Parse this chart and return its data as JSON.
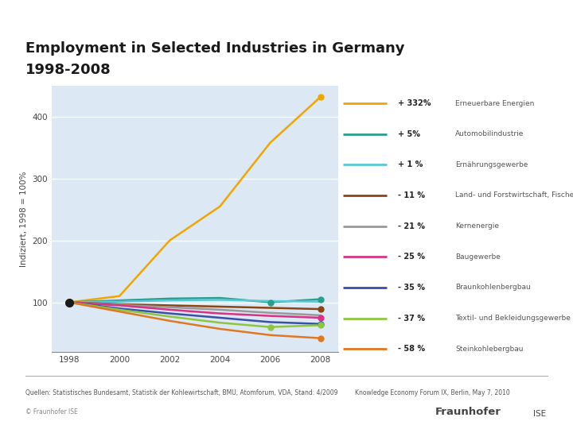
{
  "title_line1": "Employment in Selected Industries in Germany",
  "title_line2": "1998-2008",
  "ylabel": "Indiziert, 1998 = 100%",
  "background_outer": "#ffffff",
  "background_plot": "#dce9f5",
  "years": [
    1998,
    2000,
    2002,
    2004,
    2006,
    2008
  ],
  "series": [
    {
      "label_pct": "+ 332%",
      "label_name": "Erneuerbare Energien",
      "color": "#f0a500",
      "values": [
        100,
        110,
        200,
        255,
        358,
        432
      ],
      "dots": [
        1998,
        2008
      ]
    },
    {
      "label_pct": "+ 5%",
      "label_name": "Automobilindustrie",
      "color": "#2a9d8f",
      "values": [
        100,
        103,
        106,
        107,
        100,
        105
      ],
      "dots": [
        1998,
        2006,
        2008
      ]
    },
    {
      "label_pct": "+ 1 %",
      "label_name": "Ernährungsgewerbe",
      "color": "#5bc8d8",
      "values": [
        100,
        101,
        103,
        104,
        102,
        101
      ],
      "dots": [
        1998
      ]
    },
    {
      "label_pct": "- 11 %",
      "label_name": "Land- und Forstwirtschaft, Fischerei",
      "color": "#8b4513",
      "values": [
        100,
        97,
        95,
        93,
        91,
        89
      ],
      "dots": [
        1998,
        2008
      ]
    },
    {
      "label_pct": "- 21 %",
      "label_name": "Kernenergie",
      "color": "#999999",
      "values": [
        100,
        96,
        92,
        88,
        83,
        79
      ],
      "dots": [
        1998
      ]
    },
    {
      "label_pct": "- 25 %",
      "label_name": "Baugewerbe",
      "color": "#d63384",
      "values": [
        100,
        95,
        88,
        82,
        78,
        75
      ],
      "dots": [
        1998,
        2008
      ]
    },
    {
      "label_pct": "- 35 %",
      "label_name": "Braunkohlenbergbau",
      "color": "#3a4fa8",
      "values": [
        100,
        90,
        82,
        75,
        68,
        65
      ],
      "dots": [
        1998,
        2008
      ]
    },
    {
      "label_pct": "- 37 %",
      "label_name": "Textil- und Bekleidungsgewerbe",
      "color": "#8dc63f",
      "values": [
        100,
        88,
        77,
        67,
        60,
        63
      ],
      "dots": [
        1998,
        2006,
        2008
      ]
    },
    {
      "label_pct": "- 58 %",
      "label_name": "Steinkohlebergbau",
      "color": "#e07820",
      "values": [
        100,
        85,
        70,
        57,
        47,
        42
      ],
      "dots": [
        1998,
        2008
      ]
    }
  ],
  "ylim": [
    20,
    450
  ],
  "yticks": [
    100,
    200,
    300,
    400
  ],
  "footer_left": "Quellen: Statistisches Bundesamt, Statistik der Kohlewirtschaft, BMU, Atomforum, VDA, Stand: 4/2009",
  "footer_right": "Knowledge Economy Forum IX, Berlin, May 7, 2010",
  "footer_copy": "© Fraunhofer ISE"
}
